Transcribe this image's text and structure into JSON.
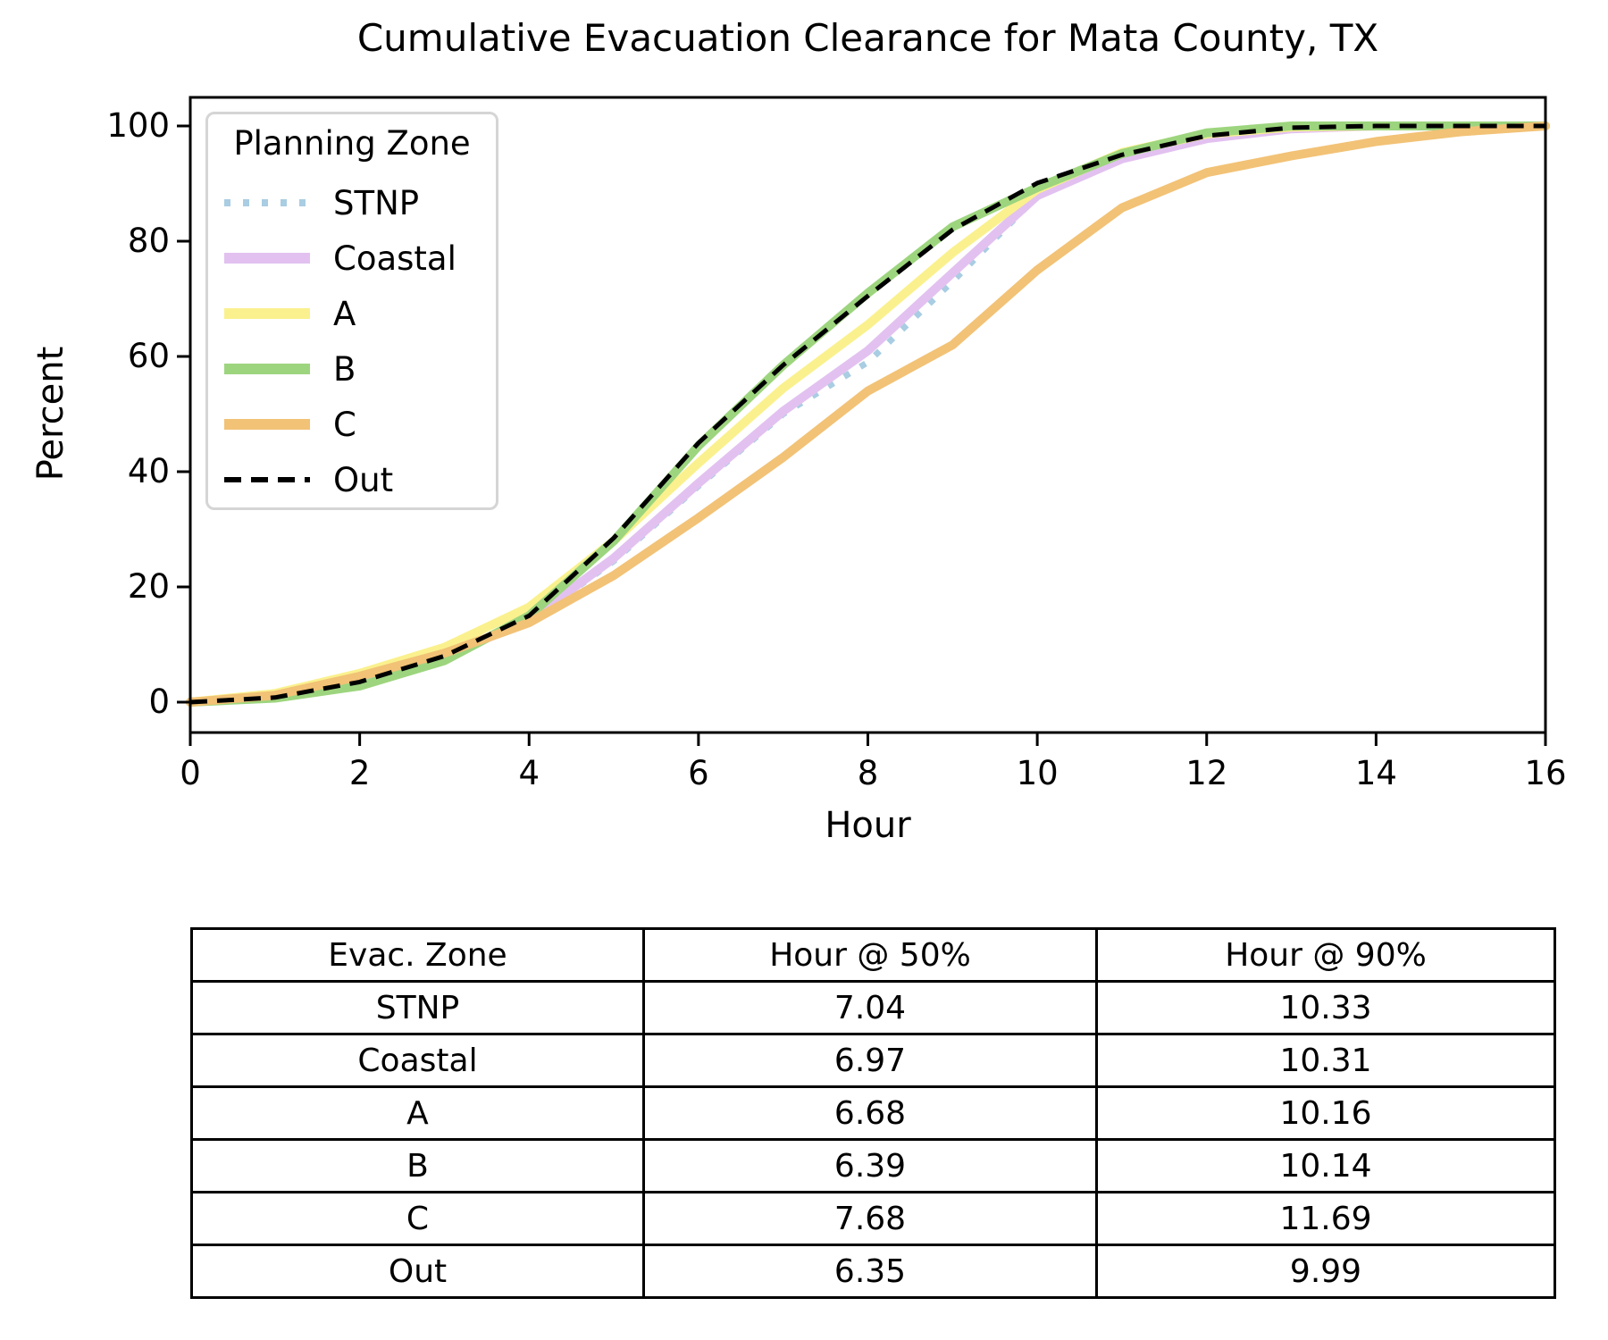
{
  "title": "Cumulative Evacuation Clearance for Mata County, TX",
  "axes": {
    "xlabel": "Hour",
    "ylabel": "Percent",
    "xticks": [
      0,
      2,
      4,
      6,
      8,
      10,
      12,
      14,
      16
    ],
    "yticks": [
      0,
      20,
      40,
      60,
      80,
      100
    ],
    "xlim": [
      0,
      16
    ],
    "ylim": [
      0,
      100
    ]
  },
  "legend": {
    "title": "Planning Zone",
    "entries": [
      {
        "label": "STNP",
        "color": "#a9cde2",
        "style": "dotted"
      },
      {
        "label": "Coastal",
        "color": "#e2c1f0",
        "style": "solid"
      },
      {
        "label": "A",
        "color": "#faf18e",
        "style": "solid"
      },
      {
        "label": "B",
        "color": "#9dd57e",
        "style": "solid"
      },
      {
        "label": "C",
        "color": "#f2c276",
        "style": "solid"
      },
      {
        "label": "Out",
        "color": "#000000",
        "style": "dashed"
      }
    ]
  },
  "chart_data": {
    "type": "line",
    "title": "Cumulative Evacuation Clearance for Mata County, TX",
    "xlabel": "Hour",
    "ylabel": "Percent",
    "xlim": [
      0,
      16
    ],
    "ylim": [
      0,
      100
    ],
    "grid": false,
    "legend_position": "upper left",
    "x": [
      0,
      1,
      2,
      3,
      4,
      5,
      6,
      7,
      8,
      9,
      10,
      11,
      12,
      13,
      14,
      15,
      16
    ],
    "series": [
      {
        "name": "STNP",
        "color": "#a9cde2",
        "style": "dotted",
        "values": [
          0,
          1.2,
          4.2,
          8.0,
          14.0,
          24.5,
          37.5,
          50.0,
          59.0,
          73.0,
          87.8,
          94.4,
          97.6,
          99.4,
          100,
          100,
          100
        ]
      },
      {
        "name": "Coastal",
        "color": "#e2c1f0",
        "style": "solid",
        "values": [
          0,
          1.2,
          4.2,
          8.0,
          14.2,
          25.0,
          38.0,
          50.5,
          61.0,
          74.5,
          87.9,
          94.3,
          97.8,
          99.5,
          100,
          100,
          100
        ]
      },
      {
        "name": "A",
        "color": "#faf18e",
        "style": "solid",
        "values": [
          0,
          1.5,
          5.0,
          9.5,
          16.5,
          28.0,
          41.5,
          54.5,
          65.5,
          78.0,
          89.0,
          95.4,
          98.6,
          99.8,
          100,
          100,
          100
        ]
      },
      {
        "name": "B",
        "color": "#9dd57e",
        "style": "solid",
        "values": [
          0,
          0.7,
          2.8,
          7.2,
          15.0,
          28.0,
          44.5,
          58.5,
          71.0,
          82.5,
          89.3,
          95.2,
          98.8,
          100,
          100,
          100,
          100
        ]
      },
      {
        "name": "C",
        "color": "#f2c276",
        "style": "solid",
        "values": [
          0,
          1.2,
          4.5,
          8.5,
          13.8,
          22.0,
          32.0,
          42.5,
          54.0,
          62.0,
          75.0,
          85.8,
          91.9,
          94.8,
          97.3,
          99.0,
          100
        ]
      },
      {
        "name": "Out",
        "color": "#000000",
        "style": "dashed",
        "values": [
          0,
          0.8,
          3.5,
          8.0,
          15.0,
          28.5,
          45.0,
          58.5,
          70.5,
          82.0,
          90.1,
          95.0,
          98.3,
          99.7,
          100,
          100,
          100
        ]
      }
    ]
  },
  "table": {
    "headers": [
      "Evac. Zone",
      "Hour @ 50%",
      "Hour @ 90%"
    ],
    "rows": [
      [
        "STNP",
        "7.04",
        "10.33"
      ],
      [
        "Coastal",
        "6.97",
        "10.31"
      ],
      [
        "A",
        "6.68",
        "10.16"
      ],
      [
        "B",
        "6.39",
        "10.14"
      ],
      [
        "C",
        "7.68",
        "11.69"
      ],
      [
        "Out",
        "6.35",
        "9.99"
      ]
    ]
  }
}
